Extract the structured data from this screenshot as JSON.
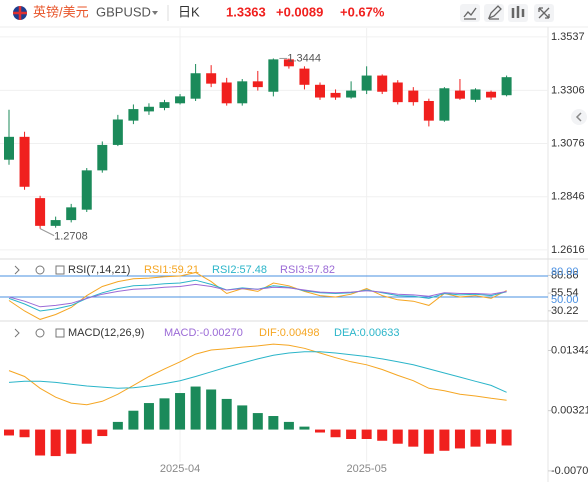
{
  "header": {
    "name": "英镑/美元",
    "symbol": "GBPUSD",
    "period": "日K",
    "price": "1.3363",
    "change": "+0.0089",
    "change_pct": "+0.67%"
  },
  "chart_data": [
    {
      "type": "candlestick",
      "categories": [
        null,
        null,
        null,
        null,
        null,
        null,
        null,
        null,
        null,
        null,
        null,
        "2025-04",
        null,
        null,
        null,
        null,
        null,
        null,
        null,
        null,
        null,
        null,
        null,
        "2025-05",
        null,
        null,
        null,
        null,
        null,
        null,
        null,
        null,
        null
      ],
      "open": [
        1.3006,
        1.3105,
        1.284,
        1.272,
        1.2745,
        1.279,
        1.296,
        1.307,
        1.3175,
        1.3215,
        1.323,
        1.325,
        1.327,
        1.338,
        1.334,
        1.325,
        1.3345,
        1.33,
        1.344,
        1.34,
        1.333,
        1.3295,
        1.3275,
        1.3305,
        1.337,
        1.334,
        1.3305,
        1.326,
        1.3175,
        1.3305,
        1.3265,
        1.33,
        1.3285
      ],
      "high": [
        1.3222,
        1.3127,
        1.285,
        1.276,
        1.2815,
        1.297,
        1.3085,
        1.32,
        1.3245,
        1.325,
        1.3265,
        1.329,
        1.342,
        1.3415,
        1.336,
        1.3355,
        1.339,
        1.3444,
        1.3444,
        1.341,
        1.334,
        1.331,
        1.3345,
        1.341,
        1.3375,
        1.335,
        1.332,
        1.327,
        1.332,
        1.3355,
        1.3315,
        1.3305,
        1.337
      ],
      "low": [
        1.2984,
        1.2876,
        1.2708,
        1.2712,
        1.2735,
        1.278,
        1.295,
        1.3065,
        1.316,
        1.32,
        1.322,
        1.3245,
        1.326,
        1.332,
        1.324,
        1.324,
        1.3305,
        1.328,
        1.34,
        1.331,
        1.3265,
        1.3265,
        1.327,
        1.329,
        1.329,
        1.3245,
        1.324,
        1.315,
        1.317,
        1.3265,
        1.3255,
        1.3265,
        1.328
      ],
      "close": [
        1.3105,
        1.2889,
        1.272,
        1.2745,
        1.28,
        1.296,
        1.307,
        1.318,
        1.3225,
        1.3235,
        1.3255,
        1.328,
        1.338,
        1.3335,
        1.325,
        1.3345,
        1.332,
        1.344,
        1.341,
        1.333,
        1.3275,
        1.3275,
        1.3305,
        1.337,
        1.33,
        1.3255,
        1.3255,
        1.3175,
        1.3315,
        1.327,
        1.331,
        1.3275,
        1.3363
      ],
      "up_color": "#1b8a5a",
      "down_color": "#f0201e",
      "ylim": [
        1.2581,
        1.3567
      ],
      "yticks": [
        1.3537,
        1.3306,
        1.3076,
        1.2846,
        1.2616
      ],
      "grid": true,
      "annotations": [
        {
          "index": 17,
          "value": 1.3444
        },
        {
          "index": 2,
          "value": 1.2708
        }
      ]
    },
    {
      "type": "line",
      "indicator": "RSI(7,14,21)",
      "readouts": [
        "RSI1:59.21",
        "RSI2:57.48",
        "RSI3:57.82"
      ],
      "series": [
        {
          "color": "#f5a623",
          "values": [
            45,
            30,
            18,
            25,
            35,
            52,
            65,
            72,
            76,
            77,
            79,
            80,
            85,
            72,
            55,
            62,
            58,
            70,
            66,
            58,
            52,
            50,
            54,
            62,
            52,
            46,
            44,
            38,
            55,
            50,
            52,
            48,
            59.21
          ]
        },
        {
          "color": "#2bb5c9",
          "values": [
            48,
            40,
            30,
            33,
            38,
            48,
            56,
            62,
            66,
            67,
            69,
            70,
            74,
            68,
            60,
            63,
            61,
            66,
            64,
            59,
            56,
            55,
            56,
            60,
            56,
            52,
            51,
            48,
            55,
            53,
            54,
            52,
            57.48
          ]
        },
        {
          "color": "#9b6ad6",
          "values": [
            50,
            44,
            36,
            38,
            41,
            48,
            54,
            58,
            61,
            62,
            64,
            65,
            68,
            65,
            60,
            62,
            61,
            64,
            63,
            60,
            57,
            56,
            57,
            59,
            57,
            54,
            53,
            51,
            56,
            55,
            55,
            54,
            57.82
          ]
        }
      ],
      "ylim": [
        20,
        100
      ],
      "yticks": [
        80.86,
        55.54,
        30.22
      ],
      "reference_lines": [
        {
          "value": 80,
          "label": "80.00"
        },
        {
          "value": 50,
          "label": "50.00"
        }
      ],
      "reference_color": "#4a90e2"
    },
    {
      "type": "bar",
      "indicator": "MACD(12,26,9)",
      "readouts": [
        "MACD:-0.00270",
        "DIF:0.00498",
        "DEA:0.00633"
      ],
      "readout_colors": [
        "#9b6ad6",
        "#f5a623",
        "#2bb5c9"
      ],
      "values": [
        -0.001,
        -0.0013,
        -0.0044,
        -0.0045,
        -0.0041,
        -0.0024,
        -0.0011,
        0.0013,
        0.0032,
        0.0045,
        0.0053,
        0.0062,
        0.0073,
        0.0068,
        0.0052,
        0.0041,
        0.0028,
        0.0023,
        0.0013,
        0.0005,
        -0.0005,
        -0.0013,
        -0.0016,
        -0.0016,
        -0.0019,
        -0.0024,
        -0.0029,
        -0.0041,
        -0.0036,
        -0.0032,
        -0.0029,
        -0.0024,
        -0.0027
      ],
      "up_color": "#1b8a5a",
      "down_color": "#f0201e",
      "series": [
        {
          "color": "#f5a623",
          "values": [
            0.01,
            0.009,
            0.007,
            0.0055,
            0.0045,
            0.0042,
            0.0048,
            0.006,
            0.0075,
            0.009,
            0.0103,
            0.0115,
            0.0128,
            0.0135,
            0.0137,
            0.014,
            0.0142,
            0.0145,
            0.0143,
            0.0138,
            0.013,
            0.0122,
            0.0115,
            0.011,
            0.0102,
            0.0092,
            0.0083,
            0.007,
            0.0066,
            0.006,
            0.0057,
            0.0053,
            0.00498
          ]
        },
        {
          "color": "#2bb5c9",
          "values": [
            0.008,
            0.0082,
            0.0082,
            0.008,
            0.0077,
            0.0074,
            0.0072,
            0.007,
            0.0071,
            0.0074,
            0.0078,
            0.0083,
            0.009,
            0.0098,
            0.0106,
            0.0113,
            0.012,
            0.0126,
            0.013,
            0.0132,
            0.0132,
            0.013,
            0.0127,
            0.0124,
            0.012,
            0.0115,
            0.011,
            0.0103,
            0.0096,
            0.0089,
            0.0082,
            0.0075,
            0.00633
          ]
        }
      ],
      "ylim": [
        -0.0072,
        0.0152
      ],
      "yticks": [
        0.01342,
        0.00321,
        -0.00701
      ]
    }
  ]
}
